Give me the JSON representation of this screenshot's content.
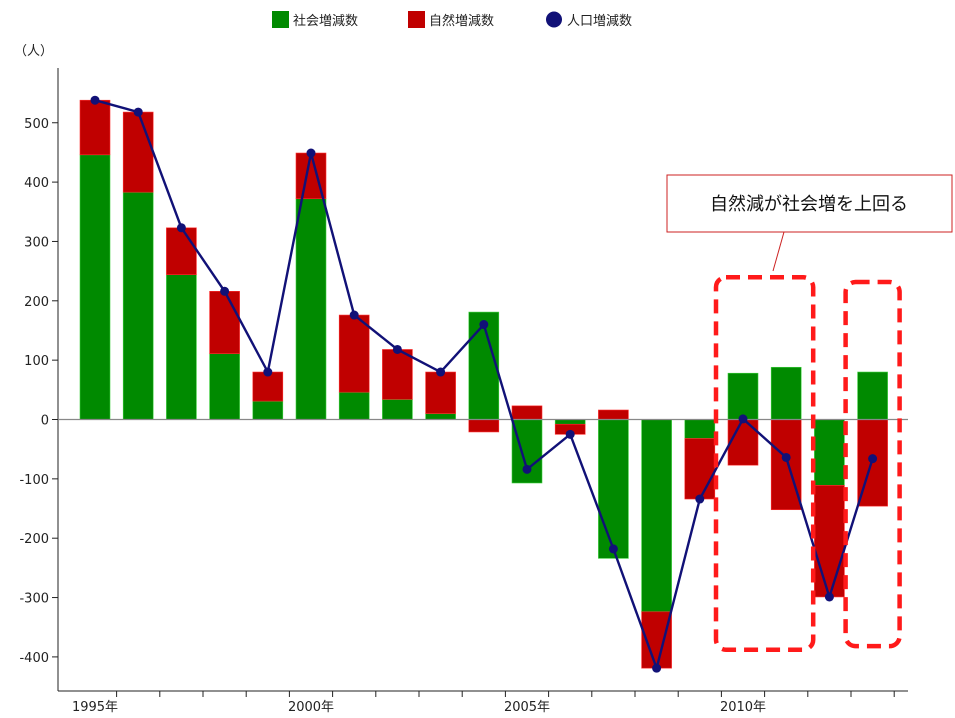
{
  "legend": {
    "social": "社会増減数",
    "natural": "自然増減数",
    "total": "人口増減数"
  },
  "y_unit": "（人）",
  "callout": {
    "text": "自然減が社会増を上回る"
  },
  "chart_data": {
    "type": "bar",
    "stacked": true,
    "title": "",
    "xlabel": "",
    "ylabel": "（人）",
    "ylim": [
      -460,
      590
    ],
    "yticks": [
      -400,
      -300,
      -200,
      -100,
      0,
      100,
      200,
      300,
      400,
      500
    ],
    "grid": false,
    "legend_position": "top",
    "x": [
      1995,
      1996,
      1997,
      1998,
      1999,
      2000,
      2001,
      2002,
      2003,
      2004,
      2005,
      2006,
      2007,
      2008,
      2009,
      2010,
      2011,
      2012,
      2013
    ],
    "x_tick_labels": [
      {
        "year": 1995,
        "label": "1995年"
      },
      {
        "year": 2000,
        "label": "2000年"
      },
      {
        "year": 2005,
        "label": "2005年"
      },
      {
        "year": 2010,
        "label": "2010年"
      }
    ],
    "series": [
      {
        "name": "社会増減数",
        "kind": "bar",
        "color": "#008a00",
        "values": [
          446,
          383,
          244,
          111,
          31,
          372,
          46,
          34,
          10,
          181,
          -107,
          -8,
          -234,
          -324,
          -32,
          78,
          88,
          -111,
          80
        ]
      },
      {
        "name": "自然増減数",
        "kind": "bar",
        "color": "#c00000",
        "values": [
          92,
          135,
          79,
          105,
          49,
          77,
          130,
          84,
          70,
          -21,
          23,
          -17,
          16,
          -95,
          -102,
          -77,
          -152,
          -188,
          -146
        ]
      },
      {
        "name": "人口増減数",
        "kind": "line",
        "color": "#111177",
        "values": [
          538,
          518,
          323,
          216,
          80,
          449,
          176,
          118,
          80,
          160,
          -84,
          -25,
          -218,
          -419,
          -134,
          1,
          -64,
          -299,
          -66
        ]
      }
    ],
    "highlight_years": [
      [
        2010,
        2011
      ],
      [
        2013,
        2013
      ]
    ]
  }
}
